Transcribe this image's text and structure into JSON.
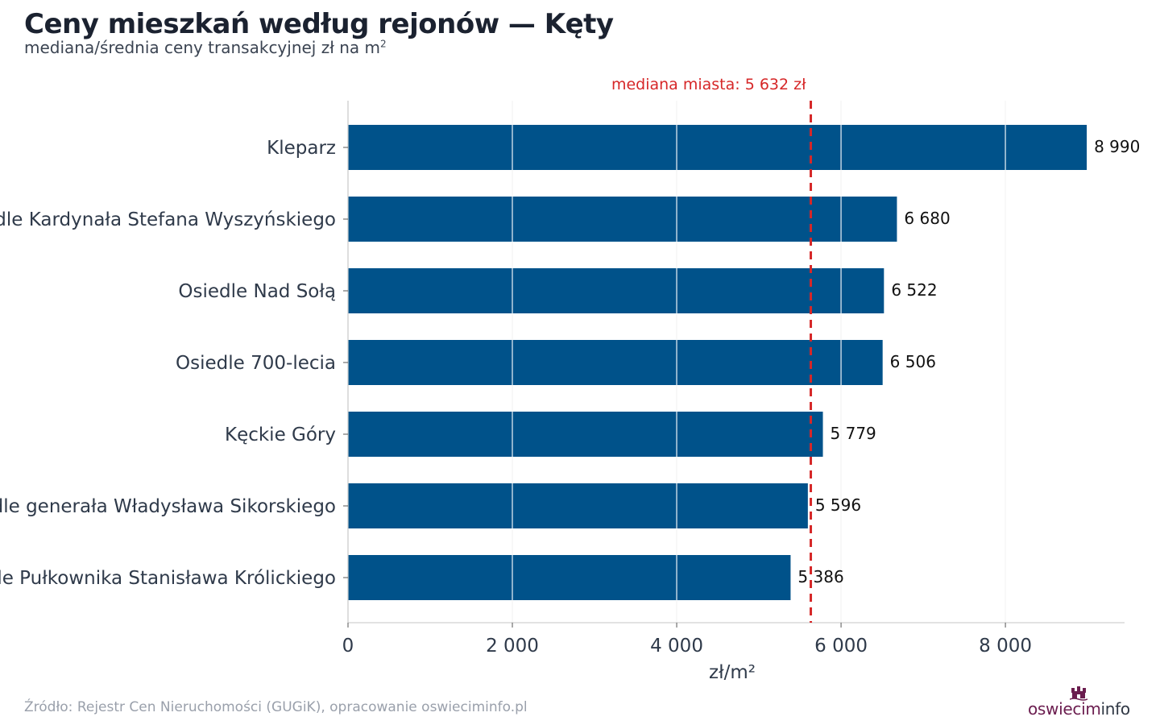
{
  "title": "Ceny mieszkań według rejonów — Kęty",
  "subtitle": "mediana/średnia ceny transakcyjnej zł na m",
  "subtitle_sup": "2",
  "footer": "Źródło: Rejestr Cen Nieruchomości (GUGiK), opracowanie oswieciminfo.pl",
  "logo": {
    "part1": "oswiecim",
    "part2": "info"
  },
  "colors": {
    "bar": "#00528a",
    "median": "#d62728",
    "grid": "#e6e6e6",
    "text": "#2f3a4a"
  },
  "chart_data": {
    "type": "bar",
    "orientation": "horizontal",
    "categories": [
      "Kleparz",
      "Osiedle Kardynała Stefana Wyszyńskiego",
      "Osiedle Nad Sołą",
      "Osiedle 700-lecia",
      "Kęckie Góry",
      "Osiedle generała Władysława Sikorskiego",
      "Osiedle Pułkownika Stanisława Królickiego"
    ],
    "values": [
      8990,
      6680,
      6522,
      6506,
      5779,
      5596,
      5386
    ],
    "value_labels": [
      "8 990",
      "6 680",
      "6 522",
      "6 506",
      "5 779",
      "5 596",
      "5 386"
    ],
    "xlabel": "zł/m²",
    "xlim": [
      0,
      9450
    ],
    "xticks": [
      0,
      2000,
      4000,
      6000,
      8000
    ],
    "xtick_labels": [
      "0",
      "2 000",
      "4 000",
      "6 000",
      "8 000"
    ],
    "grid": true,
    "reference_line": {
      "value": 5632,
      "label": "mediana miasta: 5 632 zł"
    }
  }
}
